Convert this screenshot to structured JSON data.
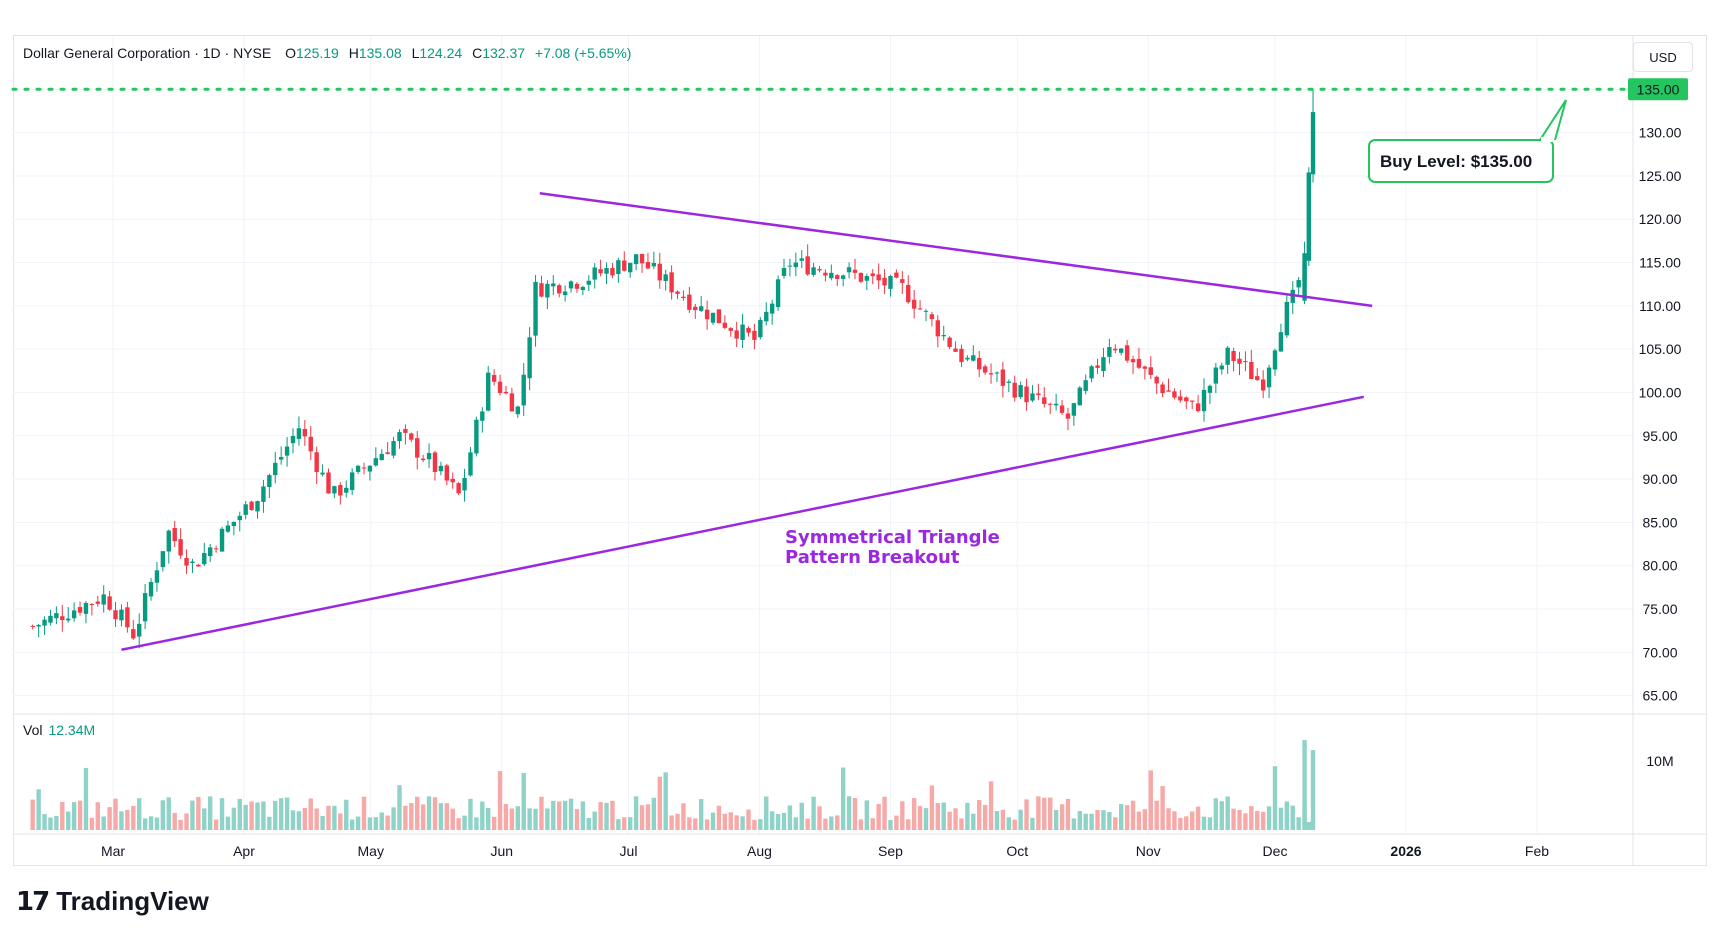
{
  "header": {
    "symbol_title": "Dollar General Corporation · 1D · NYSE",
    "open_label": "O",
    "open_value": "125.19",
    "high_label": "H",
    "high_value": "135.08",
    "low_label": "L",
    "low_value": "124.24",
    "close_label": "C",
    "close_value": "132.37",
    "change": "+7.08 (+5.65%)"
  },
  "currency_button": "USD",
  "volume_legend": {
    "label": "Vol",
    "value": "12.34M"
  },
  "branding": {
    "logo_mark": "17",
    "logo_text": "TradingView"
  },
  "colors": {
    "up": "#089981",
    "down": "#f23645",
    "triangle": "#9c27e0",
    "buy_level": "#22c55e",
    "vol_up": "#8fd3c8",
    "vol_down": "#f7a9a7",
    "grid": "#f0f3fa"
  },
  "chart_data": {
    "type": "candlestick",
    "y_axis": {
      "range": [
        63,
        140
      ],
      "ticks": [
        "65.00",
        "70.00",
        "75.00",
        "80.00",
        "85.00",
        "90.00",
        "95.00",
        "100.00",
        "105.00",
        "110.00",
        "115.00",
        "120.00",
        "125.00",
        "130.00",
        "135.00"
      ],
      "position": "right"
    },
    "volume_axis": {
      "ticks": [
        "10M"
      ]
    },
    "x_axis": {
      "ticks": [
        "Mar",
        "Apr",
        "May",
        "Jun",
        "Jul",
        "Aug",
        "Sep",
        "Oct",
        "Nov",
        "Dec",
        "2026",
        "Feb"
      ]
    },
    "grid": true,
    "price_path": [
      [
        "Feb 10",
        73
      ],
      [
        "Feb 27",
        76.5
      ],
      [
        "Mar 6",
        72
      ],
      [
        "Mar 14",
        84
      ],
      [
        "Mar 20",
        80
      ],
      [
        "Apr 4",
        88
      ],
      [
        "Apr 14",
        96
      ],
      [
        "Apr 22",
        88
      ],
      [
        "May 1",
        92
      ],
      [
        "May 8",
        95
      ],
      [
        "May 15",
        92
      ],
      [
        "May 22",
        88
      ],
      [
        "May 29",
        102
      ],
      [
        "Jun 5",
        98
      ],
      [
        "Jun 9",
        112
      ],
      [
        "Jun 20",
        113
      ],
      [
        "Jul 3",
        115.5
      ],
      [
        "Jul 17",
        110
      ],
      [
        "Jul 31",
        106
      ],
      [
        "Aug 8",
        115
      ],
      [
        "Aug 20",
        114
      ],
      [
        "Sep 4",
        112
      ],
      [
        "Sep 18",
        104
      ],
      [
        "Oct 2",
        100
      ],
      [
        "Oct 13",
        97
      ],
      [
        "Oct 23",
        106
      ],
      [
        "Nov 3",
        101
      ],
      [
        "Nov 12",
        98
      ],
      [
        "Nov 20",
        104.5
      ],
      [
        "Nov 28",
        101
      ],
      [
        "Dec 3",
        109
      ],
      [
        "Dec 5",
        110.5
      ],
      [
        "Dec 8",
        115
      ],
      [
        "Dec 9",
        125
      ],
      [
        "Dec 10",
        132.37
      ]
    ],
    "last_bar": {
      "open": 125.19,
      "high": 135.08,
      "low": 124.24,
      "close": 132.37
    },
    "horizontal_line": {
      "value": 135.0,
      "label": "135.00",
      "style": "dotted"
    },
    "annotations": [
      {
        "text": "Buy Level: $135.00"
      },
      {
        "text_line1": "Symmetrical Triangle",
        "text_line2": "Pattern Breakout"
      }
    ],
    "trendlines": [
      {
        "name": "upper",
        "from": [
          "Jun 10",
          123
        ],
        "to": [
          "Dec 24",
          110
        ]
      },
      {
        "name": "lower",
        "from": [
          "Mar 3",
          70.3
        ],
        "to": [
          "Dec 22",
          99.5
        ]
      }
    ]
  }
}
